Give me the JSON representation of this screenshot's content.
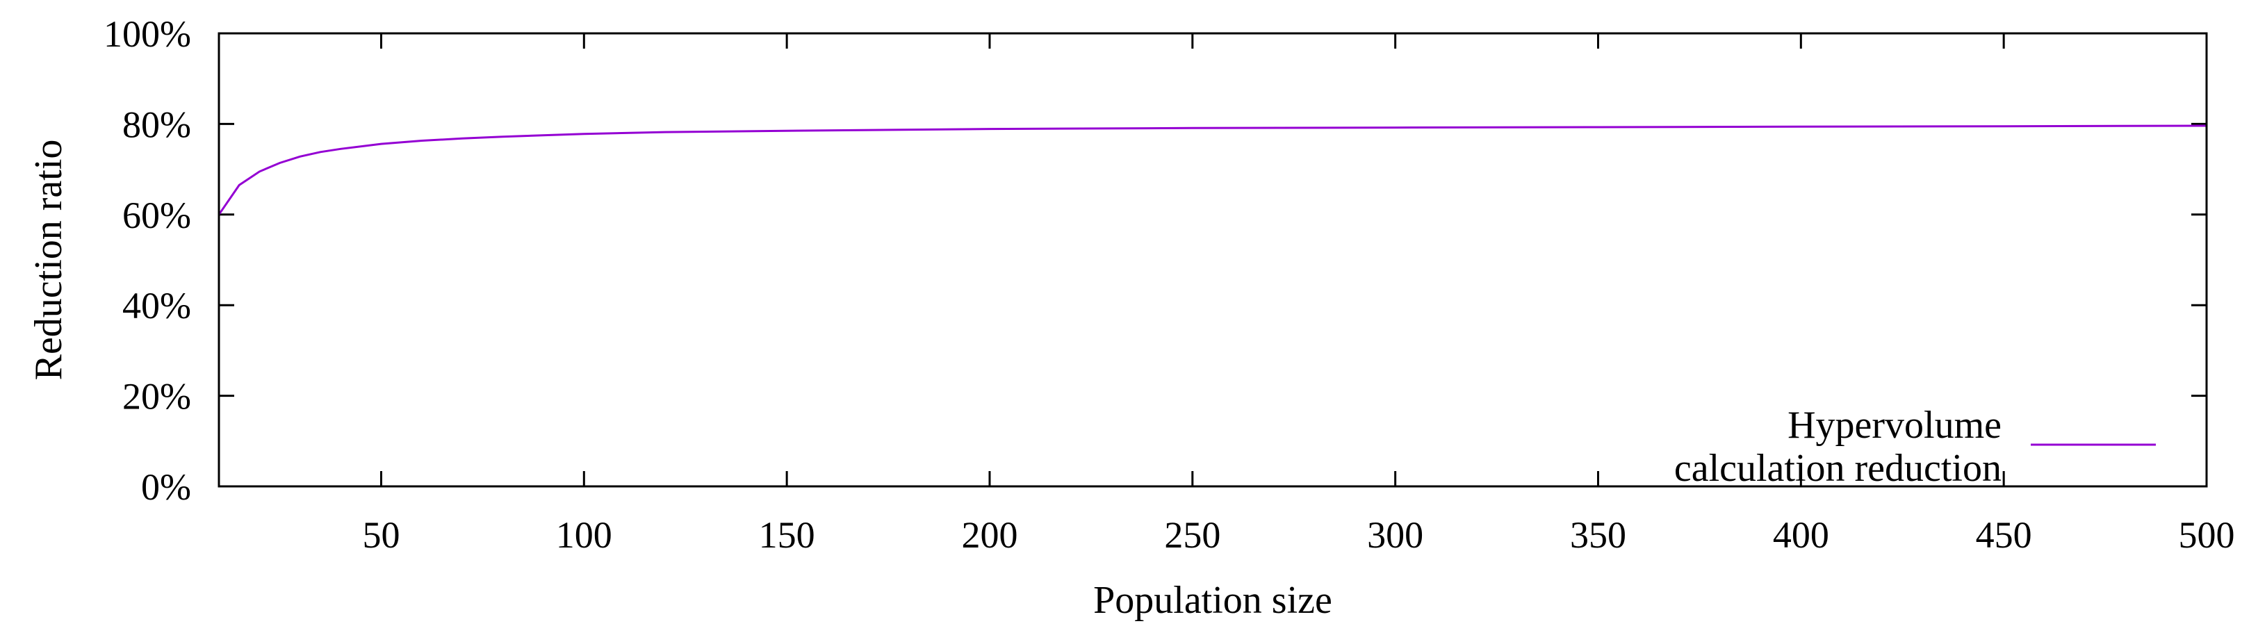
{
  "chart_data": {
    "type": "line",
    "title": "",
    "xlabel": "Population size",
    "ylabel": "Reduction ratio",
    "xlim": [
      10,
      500
    ],
    "ylim": [
      0,
      100
    ],
    "x_ticks": [
      50,
      100,
      150,
      200,
      250,
      300,
      350,
      400,
      450,
      500
    ],
    "x_tick_labels": [
      "50",
      "100",
      "150",
      "200",
      "250",
      "300",
      "350",
      "400",
      "450",
      "500"
    ],
    "y_ticks": [
      0,
      20,
      40,
      60,
      80,
      100
    ],
    "y_tick_labels": [
      "0%",
      "20%",
      "40%",
      "60%",
      "80%",
      "100%"
    ],
    "grid": false,
    "legend_position": "bottom-right",
    "series": [
      {
        "name": "Hypervolume calculation reduction",
        "legend_lines": [
          "Hypervolume",
          "calculation reduction"
        ],
        "color": "#9400d3",
        "x": [
          10,
          15,
          20,
          25,
          30,
          35,
          40,
          50,
          60,
          70,
          80,
          100,
          120,
          150,
          200,
          250,
          300,
          350,
          400,
          450,
          500
        ],
        "y": [
          60.0,
          66.5,
          69.5,
          71.4,
          72.8,
          73.8,
          74.5,
          75.6,
          76.3,
          76.8,
          77.2,
          77.8,
          78.2,
          78.5,
          78.9,
          79.1,
          79.2,
          79.3,
          79.4,
          79.5,
          79.6
        ]
      }
    ]
  }
}
